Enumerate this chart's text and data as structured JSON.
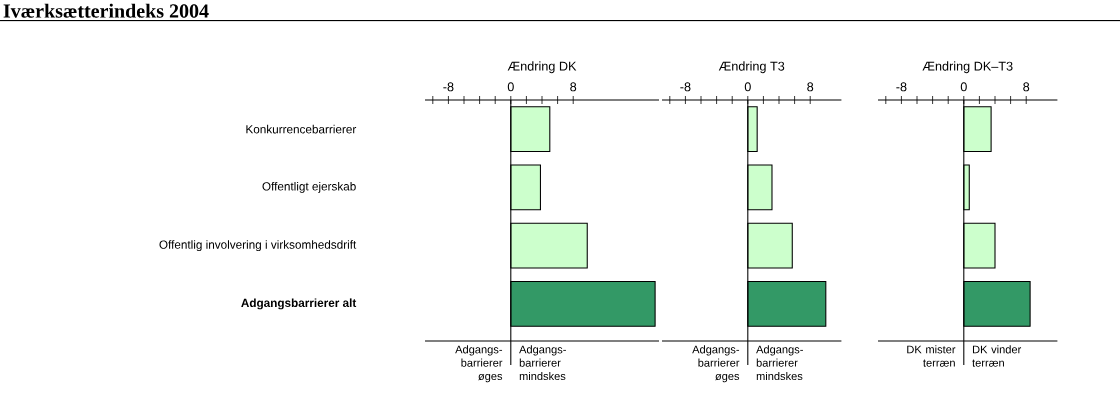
{
  "chart_data": [
    {
      "type": "bar",
      "orientation": "horizontal",
      "title": "Iværksætterindeks 2004",
      "xlabel": "Ændring DK",
      "categories": [
        "Konkurrencebarrierer",
        "Offentligt ejerskab",
        "Offentlig involvering i virksomhedsdrift",
        "**Adgangsbarrierer alt**"
      ],
      "values": [
        5.0,
        3.8,
        9.8,
        18.5
      ],
      "colors": [
        "#ccffcc",
        "#ccffcc",
        "#ccffcc",
        "#339966"
      ],
      "xlim": [
        -11,
        19
      ],
      "xticks": [
        {
          "value": -10,
          "label": null
        },
        -8,
        {
          "value": -6,
          "label": null
        },
        {
          "value": -4,
          "label": null
        },
        {
          "value": -2,
          "label": null
        },
        0,
        {
          "value": 2,
          "label": null
        },
        {
          "value": 4,
          "label": null
        },
        {
          "value": 6,
          "label": null
        },
        8
      ],
      "annotations": [
        "Adgangs- barrierer øges",
        "Adgangs- barrierer mindskes"
      ]
    },
    {
      "type": "bar",
      "orientation": "horizontal",
      "xlabel": "Ændring T3",
      "tick_labels": "x",
      "categories": [
        null,
        null,
        null,
        null
      ],
      "values": [
        1.2,
        3.1,
        5.7,
        10.0
      ],
      "colors": [
        "#ccffcc",
        "#ccffcc",
        "#ccffcc",
        "#339966"
      ],
      "xlim": [
        -11,
        12
      ],
      "xticks": [
        {
          "value": -10,
          "label": null
        },
        -8,
        {
          "value": -6,
          "label": null
        },
        {
          "value": -4,
          "label": null
        },
        {
          "value": -2,
          "label": null
        },
        0,
        {
          "value": 2,
          "label": null
        },
        {
          "value": 4,
          "label": null
        },
        {
          "value": 6,
          "label": null
        },
        8
      ],
      "annotations": [
        "Adgangs- barrierer øges",
        "Adgangs- barrierer mindskes"
      ]
    },
    {
      "type": "bar",
      "orientation": "horizontal",
      "xlabel": "Ændring DK–T3",
      "tick_labels": "x",
      "categories": [
        null,
        null,
        null,
        null
      ],
      "values": [
        3.5,
        0.7,
        4.0,
        8.5
      ],
      "colors": [
        "#ccffcc",
        "#ccffcc",
        "#ccffcc",
        "#339966"
      ],
      "xlim": [
        -11,
        12
      ],
      "xticks": [
        {
          "value": -10,
          "label": null
        },
        -8,
        {
          "value": -6,
          "label": null
        },
        {
          "value": -4,
          "label": null
        },
        {
          "value": -2,
          "label": null
        },
        0,
        {
          "value": 2,
          "label": null
        },
        {
          "value": 4,
          "label": null
        },
        {
          "value": 6,
          "label": null
        },
        8
      ],
      "annotations": [
        "DK mister terræn",
        "DK vinder terræn"
      ]
    }
  ]
}
